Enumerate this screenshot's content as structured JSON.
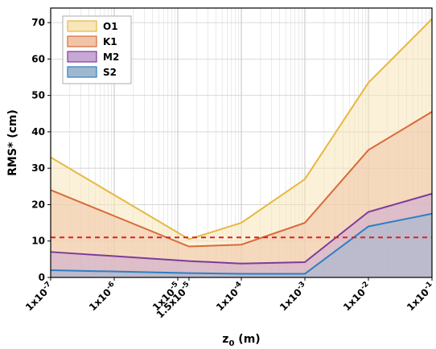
{
  "chart_data": {
    "type": "area",
    "xscale": "log",
    "xlim": [
      1e-07,
      0.1
    ],
    "ylim": [
      0,
      74
    ],
    "ylabel": "RMS* (cm)",
    "xlabel": "z_0 (m)",
    "grid": true,
    "legend_position": "top-left",
    "x": [
      1e-07,
      1.5e-05,
      0.0001,
      0.001,
      0.01,
      0.1
    ],
    "x_tick_values": [
      1e-07,
      1e-06,
      1e-05,
      1.5e-05,
      0.0001,
      0.001,
      0.01,
      0.1
    ],
    "x_tick_labels": [
      {
        "base": "1x10",
        "exp": "-7"
      },
      {
        "base": "1x10",
        "exp": "-6"
      },
      {
        "base": "1x10",
        "exp": "-5"
      },
      {
        "base": "1.5x10",
        "exp": "-5"
      },
      {
        "base": "1x10",
        "exp": "-4"
      },
      {
        "base": "1x10",
        "exp": "-3"
      },
      {
        "base": "1x10",
        "exp": "-2"
      },
      {
        "base": "1x10",
        "exp": "-1"
      }
    ],
    "y_ticks": [
      0,
      10,
      20,
      30,
      40,
      50,
      60,
      70
    ],
    "series": [
      {
        "name": "O1",
        "color": "#e6b840",
        "fill": "#f7e6b8",
        "values": [
          33,
          10.5,
          15,
          27,
          53.5,
          71
        ]
      },
      {
        "name": "K1",
        "color": "#d96a3a",
        "fill": "#f0c4a8",
        "values": [
          24,
          8.5,
          9,
          15,
          35,
          45.5
        ]
      },
      {
        "name": "M2",
        "color": "#7d3c98",
        "fill": "#c8a8d4",
        "values": [
          7,
          4.5,
          3.8,
          4.2,
          18,
          23
        ]
      },
      {
        "name": "S2",
        "color": "#2e7fc2",
        "fill": "#9fb8d0",
        "values": [
          2,
          1.2,
          1,
          1,
          14,
          17.5
        ]
      }
    ],
    "reference_line": {
      "y": 11,
      "color": "#e02020",
      "style": "dashed"
    }
  }
}
